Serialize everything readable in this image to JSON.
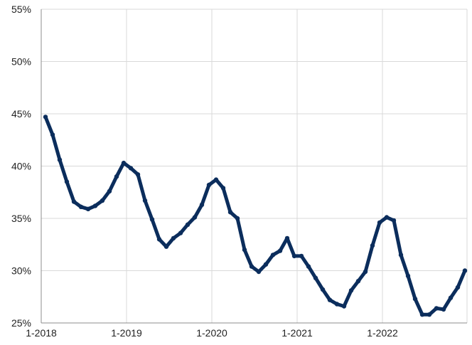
{
  "chart_data": {
    "type": "line",
    "title": "",
    "xlabel": "",
    "ylabel": "",
    "x_tick_labels": [
      "1-2018",
      "1-2019",
      "1-2020",
      "1-2021",
      "1-2022"
    ],
    "y_tick_labels": [
      "25%",
      "30%",
      "35%",
      "40%",
      "45%",
      "50%",
      "55%"
    ],
    "ylim": [
      25,
      55
    ],
    "xlim": [
      "2018-01",
      "2022-12"
    ],
    "grid": true,
    "line_color": "#0b2d5c",
    "series": [
      {
        "x": [
          "2018-01",
          "2018-02",
          "2018-03",
          "2018-04",
          "2018-05",
          "2018-06",
          "2018-07",
          "2018-08",
          "2018-09",
          "2018-10",
          "2018-11",
          "2018-12",
          "2019-01",
          "2019-02",
          "2019-03",
          "2019-04",
          "2019-05",
          "2019-06",
          "2019-07",
          "2019-08",
          "2019-09",
          "2019-10",
          "2019-11",
          "2019-12",
          "2020-01",
          "2020-02",
          "2020-03",
          "2020-04",
          "2020-05",
          "2020-06",
          "2020-07",
          "2020-08",
          "2020-09",
          "2020-10",
          "2020-11",
          "2020-12",
          "2021-01",
          "2021-02",
          "2021-03",
          "2021-04",
          "2021-05",
          "2021-06",
          "2021-07",
          "2021-08",
          "2021-09",
          "2021-10",
          "2021-11",
          "2021-12",
          "2022-01",
          "2022-02",
          "2022-03",
          "2022-04",
          "2022-05",
          "2022-06",
          "2022-07",
          "2022-08",
          "2022-09",
          "2022-10",
          "2022-11",
          "2022-12"
        ],
        "values": [
          44.7,
          43.0,
          40.6,
          38.5,
          36.6,
          36.1,
          35.9,
          36.2,
          36.7,
          37.6,
          39.0,
          40.3,
          39.8,
          39.2,
          36.7,
          34.9,
          33.0,
          32.3,
          33.1,
          33.6,
          34.4,
          35.1,
          36.3,
          38.2,
          38.7,
          37.9,
          35.6,
          35.0,
          32.0,
          30.4,
          29.9,
          30.6,
          31.5,
          31.9,
          33.1,
          31.4,
          31.4,
          30.4,
          29.3,
          28.2,
          27.2,
          26.8,
          26.6,
          28.1,
          29.0,
          29.9,
          32.4,
          34.6,
          35.1,
          34.8,
          31.5,
          29.5,
          27.3,
          25.8,
          25.8,
          26.4,
          26.3,
          27.4,
          28.4,
          30.0
        ]
      }
    ]
  }
}
